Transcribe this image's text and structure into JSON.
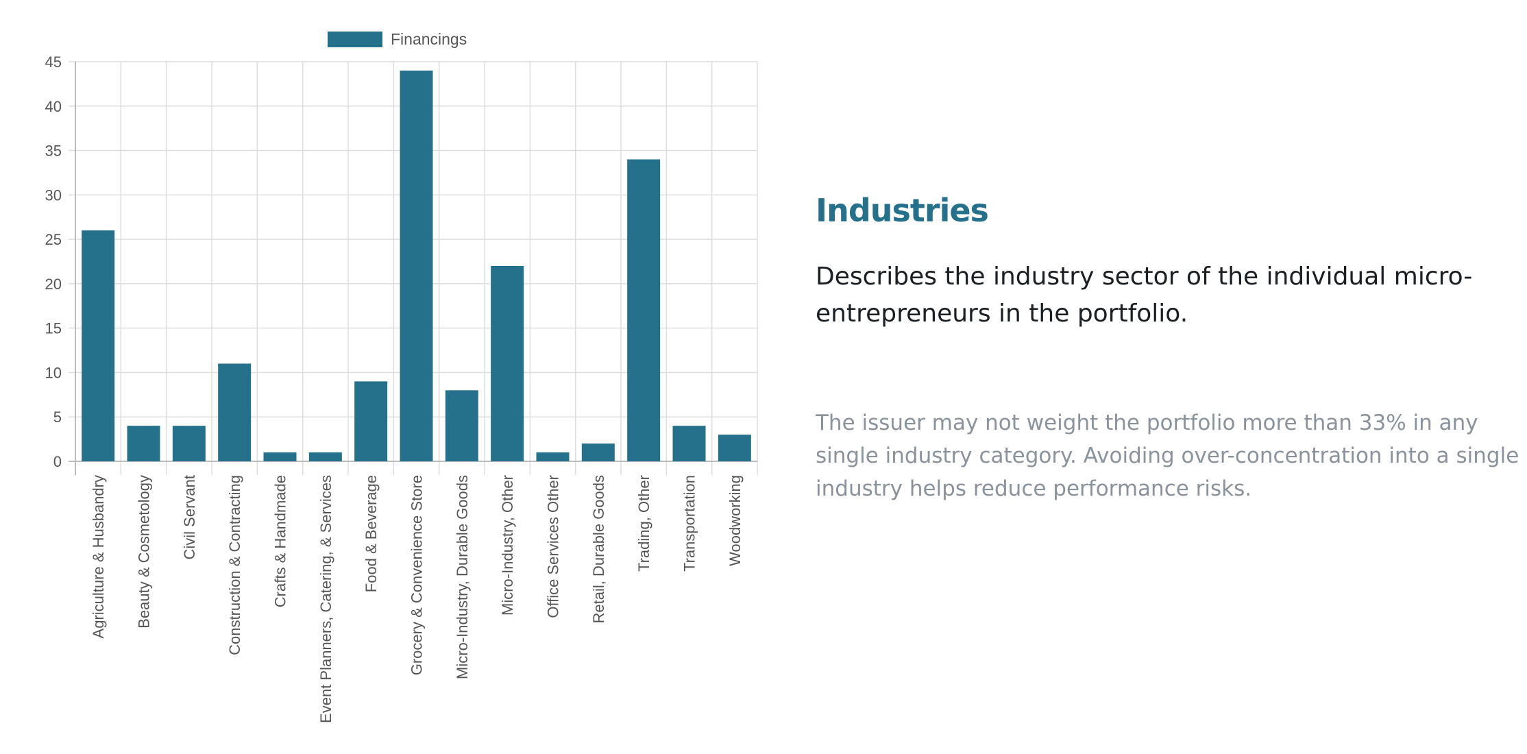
{
  "chart_data": {
    "type": "bar",
    "categories": [
      "Agriculture & Husbandry",
      "Beauty & Cosmetology",
      "Civil Servant",
      "Construction & Contracting",
      "Crafts & Handmade",
      "Event Planners, Catering, & Services",
      "Food & Beverage",
      "Grocery & Convenience Store",
      "Micro-Industry, Durable Goods",
      "Micro-Industry, Other",
      "Office Services Other",
      "Retail, Durable Goods",
      "Trading, Other",
      "Transportation",
      "Woodworking"
    ],
    "series": [
      {
        "name": "Financings",
        "values": [
          26,
          4,
          4,
          11,
          1,
          1,
          9,
          44,
          8,
          22,
          1,
          2,
          34,
          4,
          3
        ],
        "color": "#25708a"
      }
    ],
    "ylim": [
      0,
      45
    ],
    "yticks": [
      0,
      5,
      10,
      15,
      20,
      25,
      30,
      35,
      40,
      45
    ],
    "grid": true,
    "legend_position": "top-center",
    "title": "",
    "xlabel": "",
    "ylabel": ""
  },
  "info": {
    "title": "Industries",
    "lead": "Describes the industry sector of the individual micro-entrepreneurs in the portfolio.",
    "note": "The issuer may not weight the portfolio more than 33% in any single industry category. Avoiding over-concentration into a single industry helps reduce performance risks."
  },
  "colors": {
    "accent": "#25708a",
    "grid": "#dddddd",
    "axis_text": "#555555",
    "lead_text": "#1a1f24",
    "note_text": "#8a929c"
  }
}
